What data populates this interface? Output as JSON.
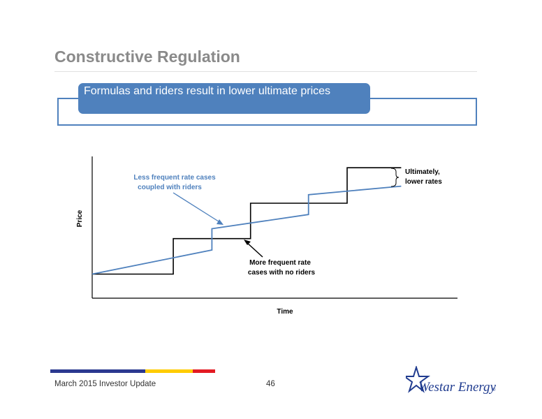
{
  "slide": {
    "title": "Constructive Regulation",
    "callout": "Formulas and riders result in lower ultimate prices"
  },
  "chart_data": {
    "type": "line",
    "xlabel": "Time",
    "ylabel": "Price",
    "xlim": [
      0,
      100
    ],
    "ylim": [
      0,
      100
    ],
    "grid": false,
    "series": [
      {
        "color": "#000000",
        "step": true,
        "x": [
          0,
          21,
          21,
          41,
          41,
          66,
          66,
          80
        ],
        "y": [
          17,
          17,
          42,
          42,
          67,
          67,
          92,
          92
        ]
      },
      {
        "color": "#4f81bd",
        "step": false,
        "x": [
          0,
          31,
          31,
          56,
          56,
          80
        ],
        "y": [
          17,
          34,
          49,
          59,
          73,
          79
        ]
      }
    ],
    "annotations": [
      {
        "id": "riders",
        "lines": [
          "Less frequent rate cases",
          "coupled with riders"
        ],
        "color": "#4f81bd"
      },
      {
        "id": "no-riders",
        "lines": [
          "More frequent rate",
          "cases with no riders"
        ],
        "color": "#000000"
      },
      {
        "id": "ultimately",
        "lines": [
          "Ultimately,",
          "lower rates"
        ],
        "color": "#000000"
      }
    ]
  },
  "footer": {
    "text": "March 2015 Investor Update",
    "page": "46",
    "bar_colors": [
      "#2b3990",
      "#ffcc00",
      "#e31b23"
    ]
  },
  "logo": {
    "text": "Westar Energy",
    "mark": "®",
    "color": "#1f3b8f"
  }
}
